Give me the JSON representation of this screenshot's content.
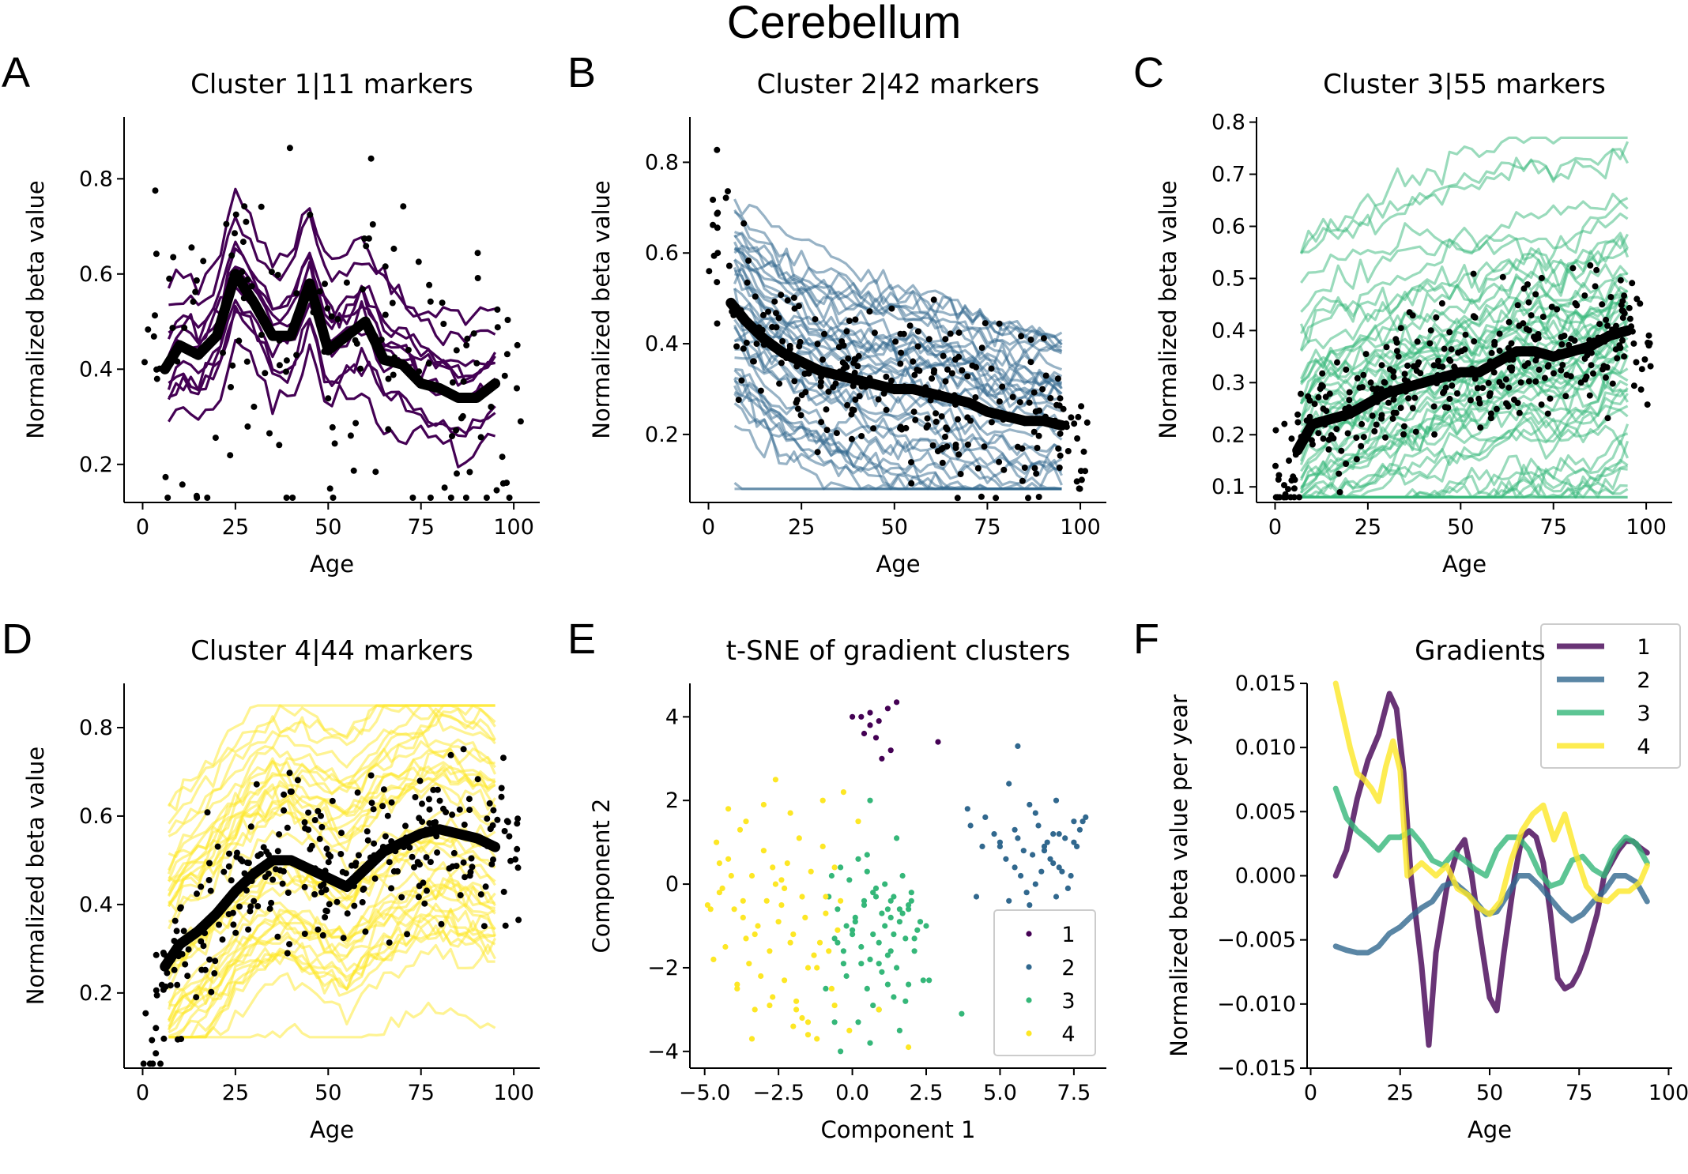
{
  "title": "Cerebellum",
  "chart_data": [
    {
      "panel": "A",
      "type": "line",
      "title": "Cluster 1|11 markers",
      "xlabel": "Age",
      "ylabel": "Normalized beta value",
      "xlim": [
        -5,
        107
      ],
      "ylim": [
        0.12,
        0.93
      ],
      "xticks": [
        0,
        25,
        50,
        75,
        100
      ],
      "yticks": [
        0.2,
        0.4,
        0.6,
        0.8
      ],
      "color": "#440154",
      "n_series": 11,
      "mean_series": {
        "x": [
          6,
          10,
          15,
          20,
          25,
          30,
          35,
          40,
          45,
          50,
          55,
          60,
          65,
          70,
          75,
          80,
          85,
          90,
          95
        ],
        "y": [
          0.4,
          0.45,
          0.43,
          0.47,
          0.6,
          0.54,
          0.47,
          0.47,
          0.58,
          0.44,
          0.47,
          0.5,
          0.42,
          0.41,
          0.37,
          0.36,
          0.34,
          0.34,
          0.37
        ]
      },
      "series_range": [
        0.13,
        0.83
      ],
      "points": {
        "n": 150,
        "seed": 11
      }
    },
    {
      "panel": "B",
      "type": "line",
      "title": "Cluster 2|42 markers",
      "xlabel": "Age",
      "ylabel": "Normalized beta value",
      "xlim": [
        -5,
        107
      ],
      "ylim": [
        0.05,
        0.9
      ],
      "xticks": [
        0,
        25,
        50,
        75,
        100
      ],
      "yticks": [
        0.2,
        0.4,
        0.6,
        0.8
      ],
      "color": "#31688e",
      "n_series": 42,
      "mean_series": {
        "x": [
          6,
          10,
          15,
          20,
          25,
          30,
          35,
          40,
          45,
          50,
          55,
          60,
          65,
          70,
          75,
          80,
          85,
          90,
          95
        ],
        "y": [
          0.49,
          0.45,
          0.41,
          0.38,
          0.36,
          0.34,
          0.33,
          0.32,
          0.31,
          0.3,
          0.3,
          0.29,
          0.28,
          0.27,
          0.25,
          0.24,
          0.23,
          0.23,
          0.22
        ]
      },
      "series_range": [
        0.08,
        0.76
      ],
      "points": {
        "n": 260,
        "seed": 42
      }
    },
    {
      "panel": "C",
      "type": "line",
      "title": "Cluster 3|55 markers",
      "xlabel": "Age",
      "ylabel": "Normalized beta value",
      "xlim": [
        -5,
        107
      ],
      "ylim": [
        0.07,
        0.81
      ],
      "xticks": [
        0,
        25,
        50,
        75,
        100
      ],
      "yticks": [
        0.1,
        0.2,
        0.3,
        0.4,
        0.5,
        0.6,
        0.7,
        0.8
      ],
      "color": "#35b779",
      "n_series": 55,
      "mean_series": {
        "x": [
          6,
          10,
          15,
          20,
          25,
          30,
          35,
          40,
          45,
          50,
          55,
          60,
          65,
          70,
          75,
          80,
          85,
          90,
          95
        ],
        "y": [
          0.17,
          0.22,
          0.23,
          0.24,
          0.26,
          0.28,
          0.29,
          0.3,
          0.31,
          0.32,
          0.32,
          0.34,
          0.36,
          0.36,
          0.35,
          0.36,
          0.37,
          0.39,
          0.4
        ]
      },
      "series_range": [
        0.08,
        0.77
      ],
      "points": {
        "n": 330,
        "seed": 55
      }
    },
    {
      "panel": "D",
      "type": "line",
      "title": "Cluster 4|44 markers",
      "xlabel": "Age",
      "ylabel": "Normalized beta value",
      "xlim": [
        -5,
        107
      ],
      "ylim": [
        0.03,
        0.9
      ],
      "xticks": [
        0,
        25,
        50,
        75,
        100
      ],
      "yticks": [
        0.2,
        0.4,
        0.6,
        0.8
      ],
      "color": "#fde725",
      "n_series": 44,
      "mean_series": {
        "x": [
          6,
          10,
          15,
          20,
          25,
          30,
          35,
          40,
          45,
          50,
          55,
          60,
          65,
          70,
          75,
          80,
          85,
          90,
          95
        ],
        "y": [
          0.26,
          0.31,
          0.34,
          0.38,
          0.43,
          0.47,
          0.5,
          0.5,
          0.48,
          0.46,
          0.44,
          0.48,
          0.52,
          0.54,
          0.56,
          0.57,
          0.56,
          0.55,
          0.53
        ]
      },
      "series_range": [
        0.1,
        0.85
      ],
      "points": {
        "n": 280,
        "seed": 44
      }
    },
    {
      "panel": "E",
      "type": "scatter",
      "title": "t-SNE of gradient clusters",
      "xlabel": "Component 1",
      "ylabel": "Component 2",
      "xlim": [
        -5.5,
        8.6
      ],
      "ylim": [
        -4.4,
        4.8
      ],
      "xticks": [
        -5.0,
        -2.5,
        0.0,
        2.5,
        5.0,
        7.5
      ],
      "xtick_labels": [
        "−5.0",
        "−2.5",
        "0.0",
        "2.5",
        "5.0",
        "7.5"
      ],
      "yticks": [
        -4,
        -2,
        0,
        2,
        4
      ],
      "ytick_labels": [
        "−4",
        "−2",
        "0",
        "2",
        "4"
      ],
      "legend": {
        "position": "lower-right",
        "entries": [
          "1",
          "2",
          "3",
          "4"
        ]
      },
      "series": [
        {
          "name": "1",
          "color": "#440154",
          "x": [
            0.0,
            0.3,
            0.6,
            0.9,
            1.2,
            1.5,
            0.4,
            0.8,
            1.3,
            1.0,
            0.6,
            2.9
          ],
          "y": [
            4.0,
            4.0,
            4.1,
            3.9,
            4.2,
            4.35,
            3.6,
            3.5,
            3.2,
            3.0,
            3.8,
            3.4
          ]
        },
        {
          "name": "2",
          "color": "#31688e",
          "x": [
            4.0,
            4.5,
            5.0,
            5.5,
            6.0,
            6.5,
            7.0,
            7.5,
            7.9,
            5.2,
            5.8,
            6.3,
            6.8,
            7.2,
            4.8,
            5.5,
            6.1,
            6.6,
            7.1,
            7.6,
            5.0,
            5.7,
            6.2,
            6.7,
            7.3,
            4.4,
            5.9,
            6.4,
            6.9,
            7.4,
            5.3,
            6.0,
            6.5,
            7.0,
            7.7,
            4.2,
            5.6,
            6.2,
            6.8,
            7.5,
            5.6,
            7.8,
            6.9,
            3.9,
            5.3
          ],
          "y": [
            1.4,
            1.6,
            1.0,
            1.3,
            1.9,
            0.9,
            1.2,
            1.5,
            1.6,
            0.6,
            0.8,
            1.4,
            0.5,
            1.1,
            1.2,
            0.4,
            0.7,
            1.0,
            0.3,
            0.9,
            0.9,
            0.2,
            0.0,
            0.6,
            -0.1,
            0.9,
            -0.2,
            0.3,
            -0.3,
            0.2,
            -0.4,
            -0.5,
            0.8,
            0.4,
            1.3,
            -0.3,
            1.1,
            1.7,
            1.2,
            1.0,
            3.3,
            1.5,
            2.0,
            1.8,
            2.4
          ]
        },
        {
          "name": "3",
          "color": "#35b779",
          "x": [
            -0.8,
            -0.5,
            -0.2,
            0.1,
            0.4,
            0.7,
            1.0,
            1.3,
            1.6,
            1.9,
            2.2,
            -0.6,
            -0.3,
            0.0,
            0.3,
            0.6,
            0.9,
            1.2,
            1.5,
            1.8,
            2.1,
            -0.7,
            -0.4,
            -0.1,
            0.2,
            0.5,
            0.8,
            1.1,
            1.4,
            1.7,
            2.0,
            2.4,
            -0.2,
            0.5,
            1.2,
            1.8,
            2.6,
            0.9,
            1.4,
            -0.9,
            0.3,
            1.0,
            1.6,
            2.3,
            0.0,
            0.7,
            1.3,
            1.9,
            -0.5,
            0.4,
            1.1,
            1.7,
            2.5,
            0.6,
            1.5,
            -0.3,
            0.9,
            2.0,
            1.2,
            0.1,
            1.3,
            -0.4,
            3.7,
            0.2,
            0.7,
            1.6,
            2.1,
            -0.6,
            0.8,
            1.4,
            0.6,
            1.9,
            0.5
          ],
          "y": [
            -0.3,
            -0.6,
            -1.0,
            -0.8,
            -0.5,
            -0.2,
            -0.7,
            -0.4,
            -0.9,
            -0.6,
            -1.1,
            -1.3,
            -1.6,
            -1.2,
            -1.5,
            -1.8,
            -1.4,
            -1.7,
            -2.0,
            -1.3,
            -1.6,
            0.2,
            0.4,
            0.1,
            0.6,
            0.3,
            -0.1,
            0.0,
            -0.3,
            0.2,
            -0.2,
            -2.3,
            -2.2,
            -2.5,
            -2.4,
            -2.8,
            -2.3,
            -3.0,
            -2.7,
            -2.5,
            -1.9,
            -2.1,
            -0.6,
            -0.9,
            -1.1,
            -1.2,
            -0.8,
            -0.5,
            -1.4,
            -0.4,
            -1.0,
            -0.7,
            -1.0,
            2.0,
            1.1,
            -1.9,
            -1.9,
            -0.4,
            -0.6,
            -0.9,
            -1.6,
            -4.0,
            -3.1,
            -3.3,
            -2.9,
            -3.5,
            -1.3,
            -3.3,
            -0.3,
            -1.2,
            -3.8,
            -2.4,
            0.7
          ]
        },
        {
          "name": "4",
          "color": "#fde725",
          "x": [
            -4.9,
            -4.5,
            -4.1,
            -3.7,
            -3.3,
            -2.9,
            -2.5,
            -2.1,
            -1.7,
            -1.3,
            -0.9,
            -0.5,
            -4.7,
            -4.3,
            -3.9,
            -3.5,
            -3.1,
            -2.7,
            -2.3,
            -1.9,
            -1.5,
            -1.1,
            -0.7,
            -4.6,
            -4.2,
            -3.8,
            -3.4,
            -3.0,
            -2.6,
            -2.2,
            -1.8,
            -1.4,
            -1.0,
            -0.6,
            -4.4,
            -4.0,
            -3.6,
            -3.2,
            -2.8,
            -2.4,
            -2.0,
            -1.6,
            -1.2,
            -0.8,
            -0.4,
            -4.8,
            -3.3,
            -2.8,
            -2.0,
            -1.5,
            -2.6,
            -3.6,
            -4.2,
            -1.0,
            -2.1,
            -3.0,
            -0.3,
            0.2,
            -1.7,
            -3.9,
            -2.4,
            -0.9,
            -1.9,
            1.9,
            -3.4,
            -1.2,
            -4.5,
            -2.7,
            -0.1,
            0.9,
            -1.5,
            -2.3,
            -3.7,
            -0.6
          ],
          "y": [
            -0.5,
            -0.2,
            0.2,
            -0.8,
            -1.2,
            -0.4,
            -0.9,
            -1.4,
            -0.3,
            -1.7,
            -0.7,
            -1.1,
            -1.8,
            -1.5,
            -2.4,
            -1.9,
            -2.2,
            -2.7,
            -2.3,
            -2.8,
            -2.0,
            -1.4,
            -2.5,
            1.0,
            0.6,
            1.3,
            0.2,
            0.8,
            0.0,
            0.5,
            1.1,
            0.3,
            0.9,
            0.4,
            -0.1,
            -0.6,
            -1.3,
            -1.0,
            -1.6,
            -0.5,
            -1.2,
            -0.8,
            -2.0,
            -1.6,
            -0.4,
            -0.6,
            -3.0,
            -2.9,
            -3.4,
            -3.6,
            2.5,
            1.5,
            1.8,
            2.0,
            1.7,
            1.9,
            2.2,
            1.5,
            -3.2,
            -2.5,
            0.1,
            -0.3,
            -3.0,
            -3.9,
            -3.7,
            -3.7,
            0.5,
            0.4,
            -3.5,
            -3.0,
            -3.3,
            -0.1,
            -0.4,
            -2.9
          ]
        }
      ]
    },
    {
      "panel": "F",
      "type": "line",
      "title": "Gradients",
      "xlabel": "Age",
      "ylabel": "Normalized beta value per year",
      "xlim": [
        -1,
        101
      ],
      "ylim": [
        -0.015,
        0.015
      ],
      "xticks": [
        0,
        25,
        50,
        75,
        100
      ],
      "yticks": [
        -0.015,
        -0.01,
        -0.005,
        0.0,
        0.005,
        0.01,
        0.015
      ],
      "ytick_labels": [
        "−0.015",
        "−0.010",
        "−0.005",
        "0.000",
        "0.005",
        "0.010",
        "0.015"
      ],
      "legend": {
        "position": "upper-right",
        "entries": [
          "1",
          "2",
          "3",
          "4"
        ]
      },
      "series": [
        {
          "name": "1",
          "color": "#440154",
          "x": [
            7,
            10,
            13,
            16,
            19,
            22,
            24,
            26,
            28,
            31,
            33,
            35,
            38,
            41,
            43,
            45,
            47,
            50,
            52,
            54,
            57,
            59,
            61,
            63,
            65,
            67,
            69,
            71,
            73,
            75,
            77,
            80,
            82,
            84,
            86,
            88,
            90,
            92,
            94
          ],
          "y": [
            0.0,
            0.002,
            0.006,
            0.009,
            0.011,
            0.0142,
            0.013,
            0.008,
            0.0,
            -0.007,
            -0.0132,
            -0.006,
            -0.001,
            0.002,
            0.0028,
            0.0,
            -0.004,
            -0.0095,
            -0.0105,
            -0.006,
            0.0,
            0.003,
            0.0035,
            0.003,
            0.001,
            -0.003,
            -0.008,
            -0.0088,
            -0.0085,
            -0.0075,
            -0.006,
            -0.003,
            0.0,
            0.001,
            0.002,
            0.0027,
            0.0027,
            0.0022,
            0.0018
          ]
        },
        {
          "name": "2",
          "color": "#31688e",
          "x": [
            7,
            10,
            13,
            16,
            19,
            22,
            25,
            28,
            31,
            34,
            37,
            40,
            43,
            46,
            49,
            52,
            55,
            58,
            61,
            64,
            67,
            70,
            73,
            76,
            79,
            82,
            85,
            88,
            91,
            94
          ],
          "y": [
            -0.0055,
            -0.0058,
            -0.006,
            -0.006,
            -0.0055,
            -0.0045,
            -0.004,
            -0.0032,
            -0.0025,
            -0.002,
            -0.0008,
            -0.0005,
            -0.0012,
            -0.002,
            -0.003,
            -0.0028,
            -0.0015,
            0.0,
            0.0,
            -0.0008,
            -0.0018,
            -0.0028,
            -0.0035,
            -0.003,
            -0.002,
            -0.0012,
            0.0,
            0.0,
            -0.0005,
            -0.002
          ]
        },
        {
          "name": "3",
          "color": "#35b779",
          "x": [
            7,
            10,
            13,
            16,
            19,
            22,
            25,
            28,
            31,
            34,
            37,
            40,
            43,
            46,
            49,
            52,
            55,
            58,
            61,
            64,
            67,
            70,
            73,
            76,
            79,
            82,
            85,
            88,
            91,
            94
          ],
          "y": [
            0.0068,
            0.0045,
            0.0035,
            0.0028,
            0.002,
            0.003,
            0.003,
            0.0035,
            0.0025,
            0.0012,
            0.0008,
            0.0018,
            0.0012,
            0.0005,
            0.0,
            0.002,
            0.003,
            0.003,
            0.002,
            0.0002,
            -0.0008,
            -0.0005,
            0.0012,
            0.0015,
            0.0005,
            0.0,
            0.002,
            0.003,
            0.0025,
            0.001
          ]
        },
        {
          "name": "4",
          "color": "#fde725",
          "x": [
            7,
            9,
            11,
            13,
            15,
            17,
            19,
            21,
            23,
            25,
            27,
            29,
            31,
            33,
            35,
            38,
            41,
            44,
            47,
            50,
            53,
            56,
            59,
            62,
            65,
            68,
            71,
            74,
            77,
            80,
            83,
            86,
            89,
            92,
            94
          ],
          "y": [
            0.015,
            0.0125,
            0.01,
            0.008,
            0.0075,
            0.0068,
            0.0058,
            0.0085,
            0.0105,
            0.0082,
            0.0,
            0.0005,
            0.001,
            0.0005,
            0.0,
            0.0008,
            -0.001,
            -0.0015,
            -0.0025,
            -0.003,
            -0.002,
            0.0012,
            0.0035,
            0.0048,
            0.0055,
            0.0028,
            0.0048,
            0.0018,
            -0.0008,
            -0.0018,
            -0.002,
            -0.0012,
            -0.0012,
            -0.0005,
            0.0008
          ]
        }
      ]
    }
  ]
}
